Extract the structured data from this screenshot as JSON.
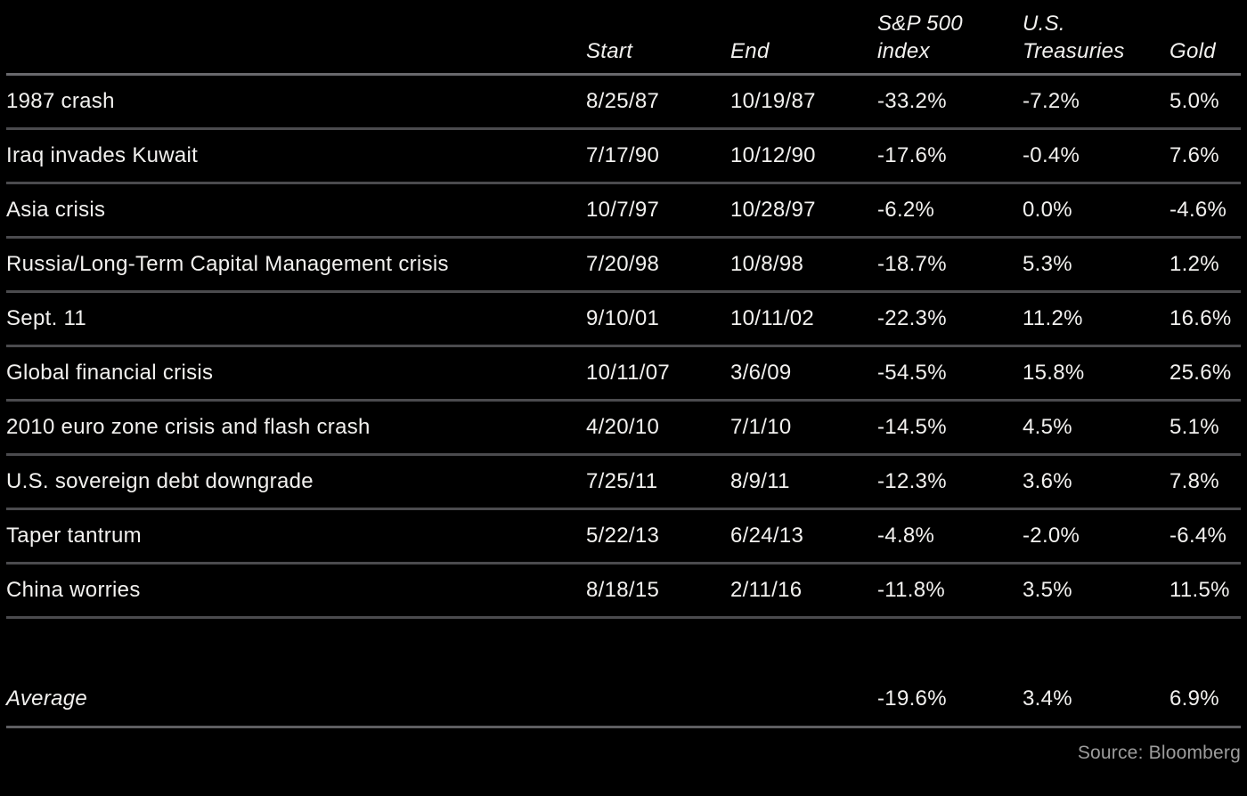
{
  "chart_data": {
    "type": "table",
    "columns": [
      {
        "key": "event",
        "label": ""
      },
      {
        "key": "start",
        "label": "Start"
      },
      {
        "key": "end",
        "label": "End"
      },
      {
        "key": "sp500",
        "label": "S&P 500\nindex"
      },
      {
        "key": "treasuries",
        "label": "U.S.\nTreasuries"
      },
      {
        "key": "gold",
        "label": "Gold"
      }
    ],
    "rows": [
      {
        "event": "1987 crash",
        "start": "8/25/87",
        "end": "10/19/87",
        "sp500": "-33.2%",
        "treasuries": "-7.2%",
        "gold": "5.0%"
      },
      {
        "event": "Iraq invades Kuwait",
        "start": "7/17/90",
        "end": "10/12/90",
        "sp500": "-17.6%",
        "treasuries": "-0.4%",
        "gold": "7.6%"
      },
      {
        "event": "Asia crisis",
        "start": "10/7/97",
        "end": "10/28/97",
        "sp500": "-6.2%",
        "treasuries": "0.0%",
        "gold": "-4.6%"
      },
      {
        "event": "Russia/Long-Term Capital Management crisis",
        "start": "7/20/98",
        "end": "10/8/98",
        "sp500": "-18.7%",
        "treasuries": "5.3%",
        "gold": "1.2%"
      },
      {
        "event": "Sept. 11",
        "start": "9/10/01",
        "end": "10/11/02",
        "sp500": "-22.3%",
        "treasuries": "11.2%",
        "gold": "16.6%"
      },
      {
        "event": "Global financial crisis",
        "start": "10/11/07",
        "end": "3/6/09",
        "sp500": "-54.5%",
        "treasuries": "15.8%",
        "gold": "25.6%"
      },
      {
        "event": "2010 euro zone crisis and flash crash",
        "start": "4/20/10",
        "end": "7/1/10",
        "sp500": "-14.5%",
        "treasuries": "4.5%",
        "gold": "5.1%"
      },
      {
        "event": "U.S. sovereign debt downgrade",
        "start": "7/25/11",
        "end": "8/9/11",
        "sp500": "-12.3%",
        "treasuries": "3.6%",
        "gold": "7.8%"
      },
      {
        "event": "Taper tantrum",
        "start": "5/22/13",
        "end": "6/24/13",
        "sp500": "-4.8%",
        "treasuries": "-2.0%",
        "gold": "-6.4%"
      },
      {
        "event": "China worries",
        "start": "8/18/15",
        "end": "2/11/16",
        "sp500": "-11.8%",
        "treasuries": "3.5%",
        "gold": "11.5%"
      }
    ],
    "average": {
      "label": "Average",
      "start": "",
      "end": "",
      "sp500": "-19.6%",
      "treasuries": "3.4%",
      "gold": "6.9%"
    },
    "source": "Source: Bloomberg"
  },
  "colors": {
    "background": "#000000",
    "text": "#f2f1ef",
    "header_rule": "#69696d",
    "row_rule": "#4b4b4e",
    "average_rule": "#5e5e61",
    "source_text": "#9c9c9c"
  }
}
